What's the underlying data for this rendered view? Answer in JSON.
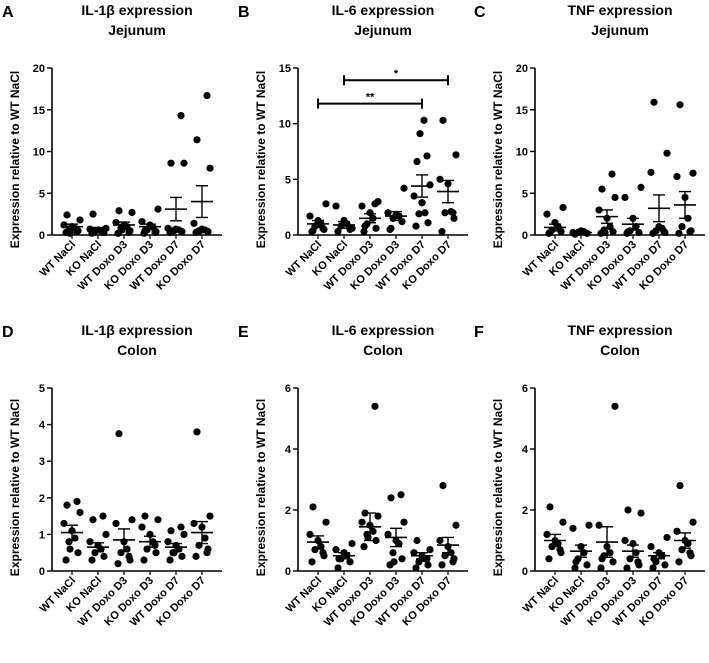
{
  "chart_data": [
    {
      "type": "scatter",
      "panel_letter": "A",
      "title": [
        "IL-1β expression",
        "Jejunum"
      ],
      "ylabel": "Expression relative  to WT NaCl",
      "ylim": [
        0,
        20
      ],
      "yticks": [
        0,
        5,
        10,
        15,
        20
      ],
      "categories": [
        "WT NaCl",
        "KO NaCl",
        "WT Doxo D3",
        "KO Doxo D3",
        "WT Doxo D7",
        "KO Doxo D7"
      ],
      "groups": [
        {
          "points": [
            0.3,
            0.5,
            0.6,
            0.8,
            1.0,
            1.2,
            1.8,
            2.4,
            0.4,
            0.2
          ],
          "mean": 1.0,
          "sem": 0.3
        },
        {
          "points": [
            0.2,
            0.3,
            0.4,
            0.5,
            0.6,
            0.7,
            0.8,
            2.5,
            0.3
          ],
          "mean": 0.7,
          "sem": 0.2
        },
        {
          "points": [
            0.2,
            0.5,
            0.8,
            1.0,
            1.2,
            1.5,
            2.7,
            2.9,
            0.3,
            0.6
          ],
          "mean": 1.2,
          "sem": 0.35
        },
        {
          "points": [
            0.2,
            0.4,
            0.6,
            0.9,
            1.2,
            1.6,
            3.1,
            0.5,
            0.3
          ],
          "mean": 1.0,
          "sem": 0.3
        },
        {
          "points": [
            0.3,
            0.4,
            0.5,
            0.6,
            0.7,
            0.8,
            8.6,
            8.6,
            14.3,
            0.5
          ],
          "mean": 3.1,
          "sem": 1.4
        },
        {
          "points": [
            0.3,
            0.4,
            0.5,
            0.6,
            0.7,
            1.4,
            8.0,
            11.4,
            16.7,
            0.5
          ],
          "mean": 4.0,
          "sem": 1.9
        }
      ],
      "significance": []
    },
    {
      "type": "scatter",
      "panel_letter": "B",
      "title": [
        "IL-6 expression",
        "Jejunum"
      ],
      "ylabel": "Expression relative  to WT NaCl",
      "ylim": [
        0,
        15
      ],
      "yticks": [
        0,
        5,
        10,
        15
      ],
      "categories": [
        "WT NaCl",
        "KO NaCl",
        "WT Doxo D3",
        "KO Doxo D3",
        "WT Doxo D7",
        "KO Doxo D7"
      ],
      "groups": [
        {
          "points": [
            0.3,
            0.5,
            0.8,
            1.0,
            1.3,
            1.7,
            2.8,
            0.4,
            0.6
          ],
          "mean": 1.0,
          "sem": 0.3
        },
        {
          "points": [
            0.3,
            0.5,
            0.8,
            1.0,
            1.3,
            2.6,
            0.6
          ],
          "mean": 0.9,
          "sem": 0.3
        },
        {
          "points": [
            0.3,
            0.6,
            1.0,
            1.5,
            2.0,
            2.6,
            3.0,
            0.8,
            2.8
          ],
          "mean": 1.5,
          "sem": 0.4
        },
        {
          "points": [
            0.5,
            1.2,
            1.5,
            1.7,
            1.8,
            2.0,
            4.2,
            0.6
          ],
          "mean": 1.7,
          "sem": 0.4
        },
        {
          "points": [
            0.8,
            1.1,
            1.9,
            2.0,
            2.9,
            3.5,
            4.5,
            6.6,
            7.1,
            9.1,
            10.3,
            2.9
          ],
          "mean": 4.4,
          "sem": 1.0
        },
        {
          "points": [
            0.3,
            1.5,
            2.0,
            2.1,
            4.6,
            5.0,
            7.2,
            10.3,
            2.0
          ],
          "mean": 3.9,
          "sem": 1.0
        }
      ],
      "significance": [
        {
          "from": 0,
          "to": 4,
          "y": 11.8,
          "label": "**"
        },
        {
          "from": 1,
          "to": 5,
          "y": 13.9,
          "label": "*"
        }
      ]
    },
    {
      "type": "scatter",
      "panel_letter": "C",
      "title": [
        "TNF expression",
        "Jejunum"
      ],
      "ylabel": "Expression relative  to WT NaCl",
      "ylim": [
        0,
        20
      ],
      "yticks": [
        0,
        5,
        10,
        15,
        20
      ],
      "categories": [
        "WT NaCl",
        "KO NaCl",
        "WT Doxo D3",
        "KO Doxo D3",
        "WT Doxo D7",
        "KO Doxo D7"
      ],
      "groups": [
        {
          "points": [
            0.2,
            0.4,
            0.6,
            1.0,
            1.5,
            2.5,
            3.3,
            0.3
          ],
          "mean": 0.9,
          "sem": 0.4
        },
        {
          "points": [
            0.1,
            0.2,
            0.3,
            0.4,
            0.5,
            0.3
          ],
          "mean": 0.3,
          "sem": 0.1
        },
        {
          "points": [
            0.2,
            0.4,
            0.6,
            1.0,
            2.0,
            3.0,
            4.5,
            5.5,
            7.3,
            0.3
          ],
          "mean": 2.2,
          "sem": 0.8
        },
        {
          "points": [
            0.2,
            0.3,
            0.5,
            1.0,
            2.0,
            4.5,
            5.7,
            0.4
          ],
          "mean": 1.3,
          "sem": 0.7
        },
        {
          "points": [
            0.2,
            0.3,
            0.5,
            0.8,
            1.0,
            7.5,
            9.8,
            15.9,
            0.4
          ],
          "mean": 3.2,
          "sem": 1.6
        },
        {
          "points": [
            0.2,
            0.5,
            1.0,
            2.0,
            4.5,
            7.0,
            7.4,
            15.6,
            0.4
          ],
          "mean": 3.6,
          "sem": 1.6
        }
      ],
      "significance": []
    },
    {
      "type": "scatter",
      "panel_letter": "D",
      "title": [
        "IL-1β expression",
        "Colon"
      ],
      "ylabel": "Expression relative  to WT NaCl",
      "ylim": [
        0,
        5
      ],
      "yticks": [
        0,
        1,
        2,
        3,
        4,
        5
      ],
      "categories": [
        "WT NaCl",
        "KO NaCl",
        "WT Doxo D3",
        "KO Doxo D3",
        "WT Doxo D7",
        "KO Doxo D7"
      ],
      "groups": [
        {
          "points": [
            0.3,
            0.5,
            0.8,
            0.9,
            1.1,
            1.3,
            1.6,
            1.8,
            1.9,
            0.6
          ],
          "mean": 1.05,
          "sem": 0.2
        },
        {
          "points": [
            0.3,
            0.4,
            0.5,
            0.6,
            0.7,
            0.8,
            1.0,
            1.4,
            1.5
          ],
          "mean": 0.65,
          "sem": 0.12
        },
        {
          "points": [
            0.2,
            0.3,
            0.5,
            0.6,
            0.8,
            1.3,
            1.4,
            3.75,
            0.4
          ],
          "mean": 0.85,
          "sem": 0.3
        },
        {
          "points": [
            0.3,
            0.5,
            0.6,
            0.8,
            1.0,
            1.2,
            1.4,
            1.5,
            0.7
          ],
          "mean": 0.8,
          "sem": 0.15
        },
        {
          "points": [
            0.3,
            0.4,
            0.5,
            0.6,
            0.7,
            0.8,
            1.0,
            1.1,
            1.2,
            0.5
          ],
          "mean": 0.65,
          "sem": 0.1
        },
        {
          "points": [
            0.4,
            0.6,
            0.7,
            0.9,
            1.2,
            1.3,
            1.5,
            3.8,
            0.5
          ],
          "mean": 1.05,
          "sem": 0.3
        }
      ],
      "significance": []
    },
    {
      "type": "scatter",
      "panel_letter": "E",
      "title": [
        "IL-6 expression",
        "Colon"
      ],
      "ylabel": "Expression relative  to WT NaCl",
      "ylim": [
        0,
        6
      ],
      "yticks": [
        0,
        2,
        4,
        6
      ],
      "categories": [
        "WT NaCl",
        "KO NaCl",
        "WT Doxo D3",
        "KO Doxo D3",
        "WT Doxo D7",
        "KO Doxo D7"
      ],
      "groups": [
        {
          "points": [
            0.3,
            0.5,
            0.7,
            0.8,
            1.0,
            1.2,
            1.6,
            2.1,
            0.6
          ],
          "mean": 0.95,
          "sem": 0.2
        },
        {
          "points": [
            0.1,
            0.3,
            0.4,
            0.5,
            0.6,
            0.7,
            0.9,
            0.4
          ],
          "mean": 0.5,
          "sem": 0.1
        },
        {
          "points": [
            0.8,
            1.0,
            1.2,
            1.3,
            1.5,
            1.6,
            1.8,
            1.9,
            5.4,
            1.1
          ],
          "mean": 1.45,
          "sem": 0.45
        },
        {
          "points": [
            0.2,
            0.4,
            0.6,
            0.9,
            1.0,
            1.2,
            1.6,
            2.4,
            2.5,
            0.3
          ],
          "mean": 1.1,
          "sem": 0.3
        },
        {
          "points": [
            0.1,
            0.2,
            0.3,
            0.4,
            0.5,
            0.6,
            0.7,
            1.0,
            0.4
          ],
          "mean": 0.5,
          "sem": 0.1
        },
        {
          "points": [
            0.2,
            0.4,
            0.5,
            0.6,
            0.8,
            1.0,
            1.5,
            2.8,
            0.3
          ],
          "mean": 0.85,
          "sem": 0.25
        }
      ],
      "significance": []
    },
    {
      "type": "scatter",
      "panel_letter": "F",
      "title": [
        "TNF expression",
        "Colon"
      ],
      "ylabel": "Expression relative  to WT NaCl",
      "ylim": [
        0,
        6
      ],
      "yticks": [
        0,
        2,
        4,
        6
      ],
      "categories": [
        "WT NaCl",
        "KO NaCl",
        "WT Doxo D3",
        "KO Doxo D3",
        "WT Doxo D7",
        "KO Doxo D7"
      ],
      "groups": [
        {
          "points": [
            0.4,
            0.6,
            0.8,
            0.9,
            1.0,
            1.2,
            1.6,
            2.1,
            0.7
          ],
          "mean": 1.0,
          "sem": 0.2
        },
        {
          "points": [
            0.1,
            0.2,
            0.4,
            0.6,
            0.8,
            1.4,
            1.5,
            0.3
          ],
          "mean": 0.65,
          "sem": 0.2
        },
        {
          "points": [
            0.1,
            0.3,
            0.5,
            0.6,
            0.8,
            1.5,
            5.4,
            0.4
          ],
          "mean": 0.95,
          "sem": 0.5
        },
        {
          "points": [
            0.1,
            0.2,
            0.4,
            0.6,
            0.9,
            1.0,
            1.9,
            2.0,
            0.3
          ],
          "mean": 0.65,
          "sem": 0.2
        },
        {
          "points": [
            0.1,
            0.2,
            0.3,
            0.5,
            0.6,
            0.8,
            1.1,
            0.4
          ],
          "mean": 0.5,
          "sem": 0.1
        },
        {
          "points": [
            0.3,
            0.5,
            0.7,
            0.9,
            1.0,
            1.3,
            1.6,
            2.8,
            0.6
          ],
          "mean": 1.0,
          "sem": 0.25
        }
      ],
      "significance": []
    }
  ]
}
